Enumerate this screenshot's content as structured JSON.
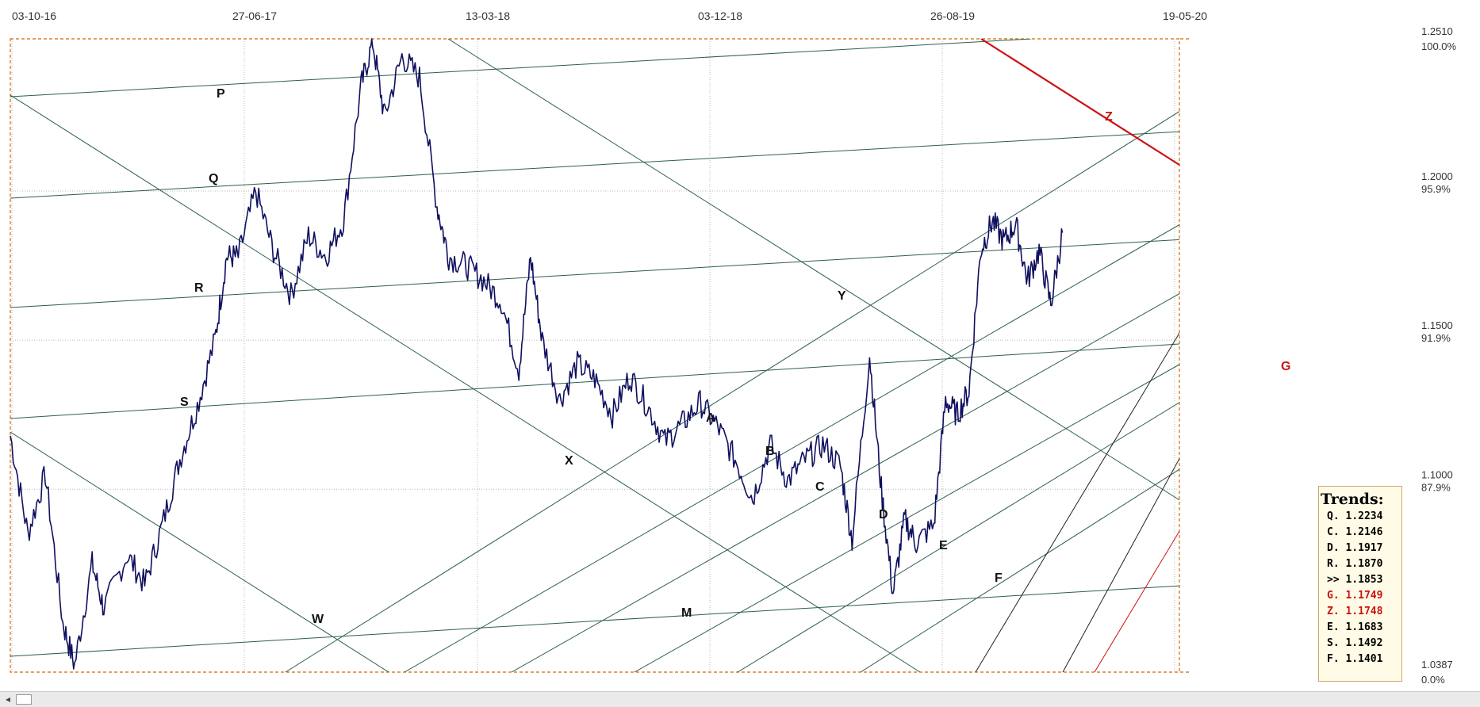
{
  "chart_data": {
    "type": "line",
    "x_tick_labels": [
      "03-10-16",
      "27-06-17",
      "13-03-18",
      "03-12-18",
      "26-08-19",
      "19-05-20"
    ],
    "y_axis": {
      "top_price": "1.2510",
      "top_percent": "100.0%",
      "bottom_price": "1.0387",
      "bottom_percent": "0.0%",
      "levels": [
        {
          "price": "1.2000",
          "percent": "95.9%",
          "value": 1.2
        },
        {
          "price": "1.1500",
          "percent": "91.9%",
          "value": 1.15
        },
        {
          "price": "1.1000",
          "percent": "87.9%",
          "value": 1.1
        }
      ],
      "ylim": [
        1.0387,
        1.251
      ]
    },
    "x_range_index": [
      0,
      100
    ],
    "price_anchors": [
      [
        0,
        1.118
      ],
      [
        1.5,
        1.085
      ],
      [
        3,
        1.105
      ],
      [
        4.5,
        1.055
      ],
      [
        5.5,
        1.041
      ],
      [
        7,
        1.075
      ],
      [
        8,
        1.06
      ],
      [
        10,
        1.078
      ],
      [
        11.5,
        1.068
      ],
      [
        13,
        1.088
      ],
      [
        14.5,
        1.11
      ],
      [
        16,
        1.128
      ],
      [
        17.5,
        1.15
      ],
      [
        18.5,
        1.178
      ],
      [
        19.5,
        1.178
      ],
      [
        21,
        1.2
      ],
      [
        22.5,
        1.18
      ],
      [
        24,
        1.165
      ],
      [
        25.5,
        1.185
      ],
      [
        27,
        1.178
      ],
      [
        28.5,
        1.19
      ],
      [
        30,
        1.235
      ],
      [
        31,
        1.25
      ],
      [
        32,
        1.225
      ],
      [
        33.5,
        1.245
      ],
      [
        35,
        1.238
      ],
      [
        36.5,
        1.195
      ],
      [
        37.5,
        1.178
      ],
      [
        39,
        1.175
      ],
      [
        40.5,
        1.17
      ],
      [
        42,
        1.163
      ],
      [
        43.5,
        1.14
      ],
      [
        44.5,
        1.178
      ],
      [
        45.5,
        1.15
      ],
      [
        47,
        1.13
      ],
      [
        48.5,
        1.142
      ],
      [
        50,
        1.137
      ],
      [
        51.5,
        1.125
      ],
      [
        53,
        1.138
      ],
      [
        54.5,
        1.128
      ],
      [
        56,
        1.116
      ],
      [
        57.5,
        1.122
      ],
      [
        59,
        1.129
      ],
      [
        60.5,
        1.121
      ],
      [
        62,
        1.11
      ],
      [
        63.5,
        1.097
      ],
      [
        65,
        1.115
      ],
      [
        66.5,
        1.103
      ],
      [
        68,
        1.11
      ],
      [
        69.5,
        1.115
      ],
      [
        71,
        1.108
      ],
      [
        72,
        1.083
      ],
      [
        73.5,
        1.145
      ],
      [
        74.5,
        1.1
      ],
      [
        75.5,
        1.065
      ],
      [
        76.5,
        1.09
      ],
      [
        77.5,
        1.082
      ],
      [
        79,
        1.088
      ],
      [
        80,
        1.13
      ],
      [
        81,
        1.125
      ],
      [
        82,
        1.133
      ],
      [
        83,
        1.18
      ],
      [
        84,
        1.19
      ],
      [
        85,
        1.183
      ],
      [
        86,
        1.189
      ],
      [
        87,
        1.17
      ],
      [
        88,
        1.18
      ],
      [
        89,
        1.162
      ],
      [
        90,
        1.186
      ]
    ],
    "trend_line_labels": [
      {
        "id": "P"
      },
      {
        "id": "Q"
      },
      {
        "id": "R"
      },
      {
        "id": "S"
      },
      {
        "id": "W"
      },
      {
        "id": "X"
      },
      {
        "id": "Y"
      },
      {
        "id": "A"
      },
      {
        "id": "B"
      },
      {
        "id": "C"
      },
      {
        "id": "D"
      },
      {
        "id": "E"
      },
      {
        "id": "F"
      },
      {
        "id": "M"
      },
      {
        "id": "Z"
      },
      {
        "id": "G"
      }
    ],
    "colors": {
      "price": "#101060",
      "trend": "#2e5e4e",
      "trend_dark": "#222222",
      "red": "#cc1111",
      "frame": "#d9822b",
      "grid": "#b8b8b8"
    }
  },
  "trends_panel": {
    "title": "Trends:",
    "rows": [
      {
        "label": "Q.",
        "value": "1.2234",
        "highlight": false
      },
      {
        "label": "C.",
        "value": "1.2146",
        "highlight": false
      },
      {
        "label": "D.",
        "value": "1.1917",
        "highlight": false
      },
      {
        "label": "R.",
        "value": "1.1870",
        "highlight": false
      },
      {
        "label": ">>",
        "value": "1.1853",
        "highlight": false
      },
      {
        "label": "G.",
        "value": "1.1749",
        "highlight": true
      },
      {
        "label": "Z.",
        "value": "1.1748",
        "highlight": true
      },
      {
        "label": "E.",
        "value": "1.1683",
        "highlight": false
      },
      {
        "label": "S.",
        "value": "1.1492",
        "highlight": false
      },
      {
        "label": "F.",
        "value": "1.1401",
        "highlight": false
      }
    ]
  },
  "scrollbar": {
    "left_arrow": "◂"
  }
}
